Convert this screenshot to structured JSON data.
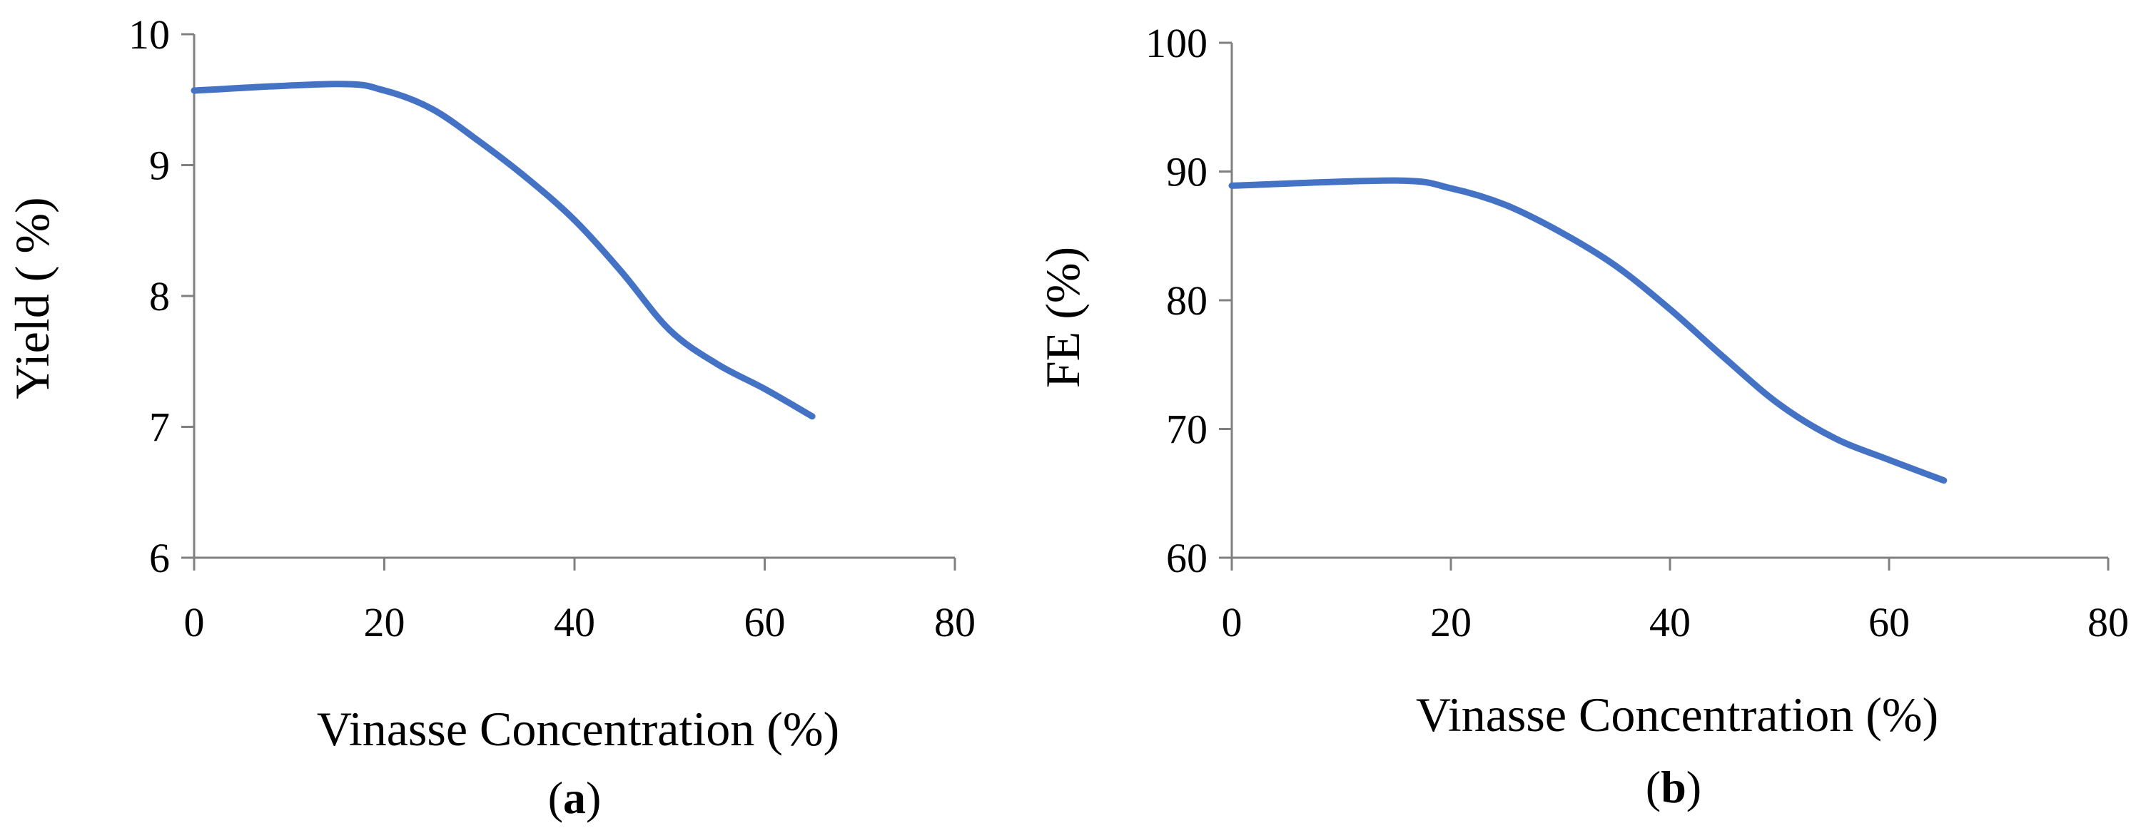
{
  "colors": {
    "line": "#4472C4",
    "axis": "#808080",
    "text": "#000000"
  },
  "chart_data": [
    {
      "type": "line",
      "panel_label": {
        "open": "(",
        "letter": "a",
        "close": ")"
      },
      "xlabel": "Vinasse Concentration (%)",
      "ylabel": "Yield ( %)",
      "xlim": [
        0,
        80
      ],
      "ylim": [
        6,
        10
      ],
      "xticks": [
        0,
        20,
        40,
        60,
        80
      ],
      "yticks": [
        6,
        7,
        8,
        9,
        10
      ],
      "xtick_labels": [
        "0",
        "20",
        "40",
        "60",
        "80"
      ],
      "ytick_labels": [
        "6",
        "7",
        "8",
        "9",
        "10"
      ],
      "series": [
        {
          "name": "Yield",
          "x": [
            0,
            15,
            20,
            25,
            30,
            35,
            40,
            45,
            50,
            55,
            60,
            65
          ],
          "y": [
            9.57,
            9.62,
            9.57,
            9.43,
            9.18,
            8.9,
            8.58,
            8.18,
            7.74,
            7.48,
            7.29,
            7.08
          ]
        }
      ]
    },
    {
      "type": "line",
      "panel_label": {
        "open": "(",
        "letter": "b",
        "close": ")"
      },
      "xlabel": "Vinasse Concentration (%)",
      "ylabel": "FE (%)",
      "xlim": [
        0,
        80
      ],
      "ylim": [
        60,
        100
      ],
      "xticks": [
        0,
        20,
        40,
        60,
        80
      ],
      "yticks": [
        60,
        70,
        80,
        90,
        100
      ],
      "xtick_labels": [
        "0",
        "20",
        "40",
        "60",
        "80"
      ],
      "ytick_labels": [
        "60",
        "70",
        "80",
        "90",
        "100"
      ],
      "series": [
        {
          "name": "FE",
          "x": [
            0,
            15,
            20,
            25,
            30,
            35,
            40,
            45,
            50,
            55,
            60,
            65
          ],
          "y": [
            88.9,
            89.3,
            88.7,
            87.4,
            85.3,
            82.7,
            79.3,
            75.5,
            71.9,
            69.3,
            67.6,
            66.0
          ]
        }
      ]
    }
  ]
}
